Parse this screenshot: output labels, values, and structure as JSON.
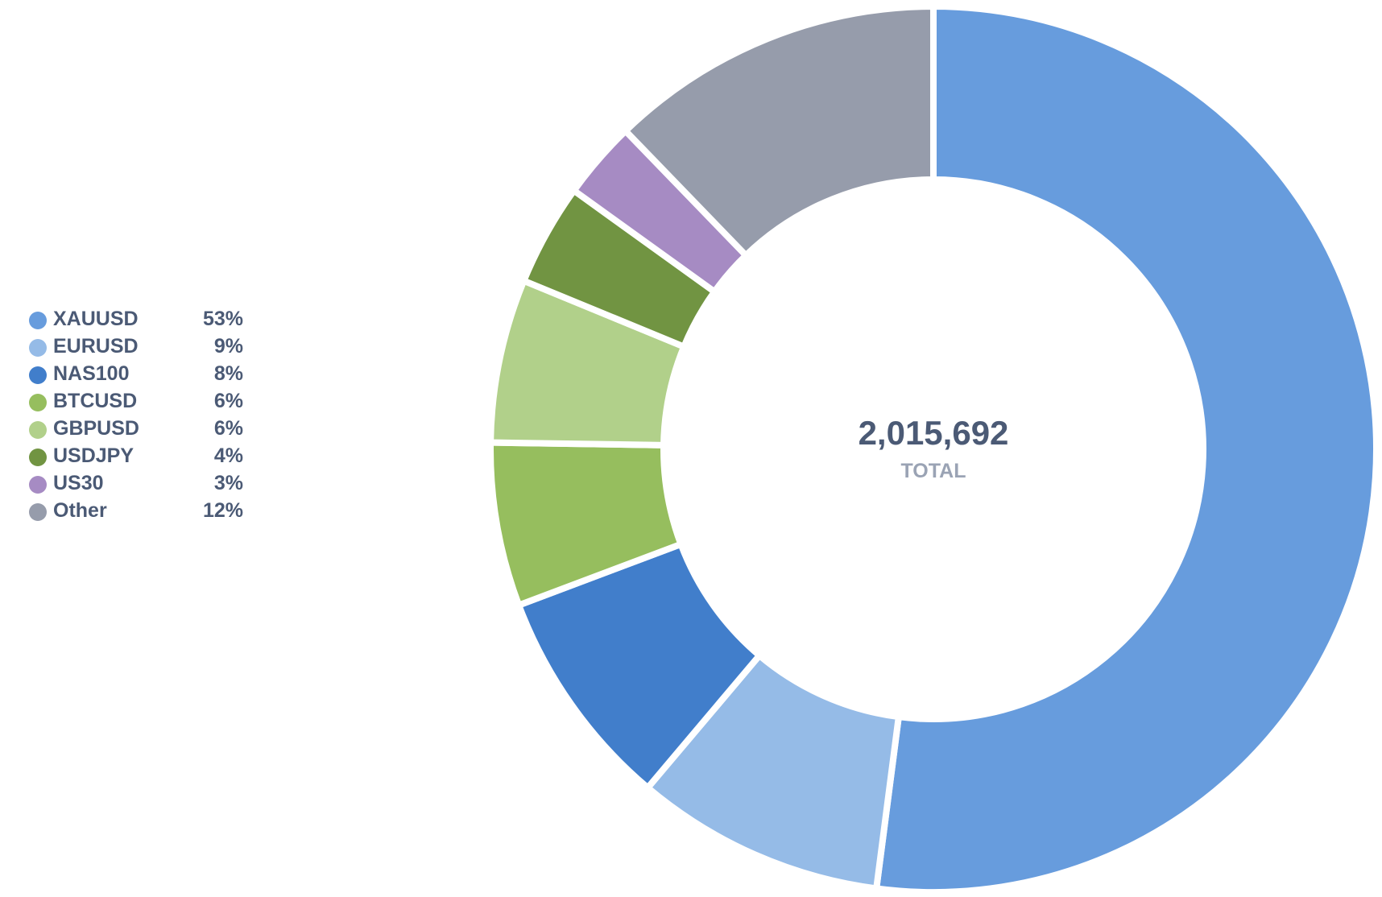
{
  "chart_data": {
    "type": "pie",
    "donut": true,
    "center_value": "2,015,692",
    "center_label": "TOTAL",
    "legend_position": "left",
    "slices": [
      {
        "label": "XAUUSD",
        "percent_label": "53%",
        "value": 53.2,
        "color": "#679cdd"
      },
      {
        "label": "EURUSD",
        "percent_label": "9%",
        "value": 9.3,
        "color": "#95bbe7"
      },
      {
        "label": "NAS100",
        "percent_label": "8%",
        "value": 8.3,
        "color": "#417ecb"
      },
      {
        "label": "BTCUSD",
        "percent_label": "6%",
        "value": 6.1,
        "color": "#96be5e"
      },
      {
        "label": "GBPUSD",
        "percent_label": "6%",
        "value": 6.1,
        "color": "#b1d08a"
      },
      {
        "label": "USDJPY",
        "percent_label": "4%",
        "value": 3.8,
        "color": "#719442"
      },
      {
        "label": "US30",
        "percent_label": "3%",
        "value": 2.9,
        "color": "#a68bc3"
      },
      {
        "label": "Other",
        "percent_label": "12%",
        "value": 12.5,
        "color": "#969cab"
      }
    ]
  }
}
